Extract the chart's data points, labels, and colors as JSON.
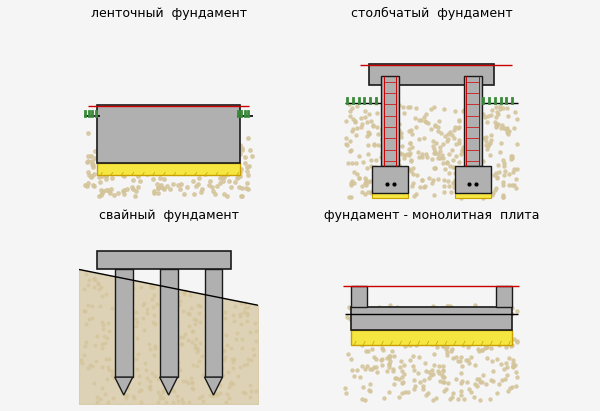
{
  "bg_color": "#f5f5f5",
  "concrete_color": "#b0b0b0",
  "concrete_edge": "#1a1a1a",
  "soil_color": "#d4c49a",
  "soil_edge": "#8a7a50",
  "yellow_color": "#f5e642",
  "yellow_edge": "#c8a000",
  "green_color": "#3a8a3a",
  "red_color": "#cc0000",
  "black": "#000000",
  "white": "#ffffff",
  "title1": "ленточный  фундамент",
  "title2": "столбчатый  фундамент",
  "title3": "свайный  фундамент",
  "title4": "фундамент - монолитная  плита",
  "font_size": 9
}
